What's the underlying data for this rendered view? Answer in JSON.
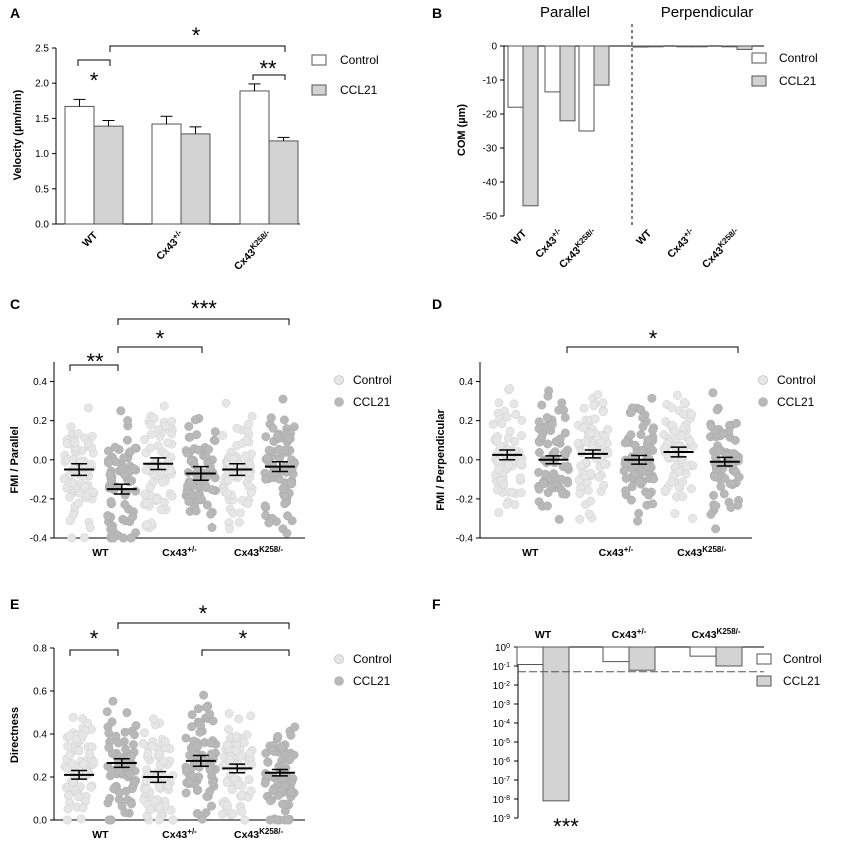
{
  "figure": {
    "colors": {
      "control_fill": "#ffffff",
      "ccl21_fill": "#d3d3d3",
      "control_dot": "#e6e6e6",
      "ccl21_dot": "#b8b8b8",
      "stroke": "#555555"
    }
  },
  "chart_data": [
    {
      "panel": "A",
      "type": "bar",
      "ylabel": "Velocity (µm/min)",
      "ylim": [
        0,
        2.5
      ],
      "yticks": [
        "0.0",
        "0.5",
        "1.0",
        "1.5",
        "2.0",
        "2.5"
      ],
      "categories": [
        "WT",
        "Cx43",
        "Cx43"
      ],
      "category_superscripts": [
        "",
        "+/-",
        "K258/-"
      ],
      "series": [
        {
          "name": "Control",
          "values": [
            1.67,
            1.42,
            1.89
          ],
          "errors": [
            0.1,
            0.11,
            0.1
          ]
        },
        {
          "name": "CCL21",
          "values": [
            1.39,
            1.28,
            1.18
          ],
          "errors": [
            0.08,
            0.1,
            0.05
          ]
        }
      ],
      "legend": [
        "Control",
        "CCL21"
      ],
      "significance": [
        "*",
        "**",
        "*"
      ]
    },
    {
      "panel": "B",
      "type": "bar",
      "ylabel": "COM (µm)",
      "ylim": [
        -50,
        0
      ],
      "yticks": [
        "0",
        "-10",
        "-20",
        "-30",
        "-40",
        "-50"
      ],
      "groups": [
        "Parallel",
        "Perpendicular"
      ],
      "categories": [
        "WT",
        "Cx43",
        "Cx43",
        "WT",
        "Cx43",
        "Cx43"
      ],
      "category_superscripts": [
        "",
        "+/-",
        "K258/-",
        "",
        "+/-",
        "K258/-"
      ],
      "series": [
        {
          "name": "Control",
          "values": [
            -18,
            -13.5,
            -25,
            -0.3,
            -0.2,
            -0.1
          ]
        },
        {
          "name": "CCL21",
          "values": [
            -47,
            -22,
            -11.5,
            -0.1,
            -0.2,
            -1.0
          ]
        }
      ],
      "legend": [
        "Control",
        "CCL21"
      ]
    },
    {
      "panel": "C",
      "type": "scatter",
      "ylabel": "FMI / Parallel",
      "ylim": [
        -0.4,
        0.5
      ],
      "yticks": [
        "0.4",
        "0.2",
        "0.0",
        "-0.2",
        "-0.4"
      ],
      "categories": [
        "WT",
        "Cx43",
        "Cx43"
      ],
      "category_superscripts": [
        "",
        "+/-",
        "K258/-"
      ],
      "series": [
        {
          "name": "Control",
          "means": [
            -0.05,
            -0.02,
            -0.05
          ],
          "sem": [
            0.03,
            0.03,
            0.03
          ]
        },
        {
          "name": "CCL21",
          "means": [
            -0.15,
            -0.07,
            -0.035
          ],
          "sem": [
            0.025,
            0.035,
            0.025
          ]
        }
      ],
      "legend": [
        "Control",
        "CCL21"
      ],
      "significance": [
        "**",
        "*",
        "***"
      ]
    },
    {
      "panel": "D",
      "type": "scatter",
      "ylabel": "FMI / Perpendicular",
      "ylim": [
        -0.4,
        0.5
      ],
      "yticks": [
        "0.4",
        "0.2",
        "0.0",
        "-0.2",
        "-0.4"
      ],
      "categories": [
        "WT",
        "Cx43",
        "Cx43"
      ],
      "category_superscripts": [
        "",
        "+/-",
        "K258/-"
      ],
      "series": [
        {
          "name": "Control",
          "means": [
            0.025,
            0.03,
            0.04
          ],
          "sem": [
            0.025,
            0.02,
            0.025
          ]
        },
        {
          "name": "CCL21",
          "means": [
            0.0,
            0.0,
            -0.01
          ],
          "sem": [
            0.02,
            0.022,
            0.022
          ]
        }
      ],
      "legend": [
        "Control",
        "CCL21"
      ],
      "significance": [
        "*"
      ]
    },
    {
      "panel": "E",
      "type": "scatter",
      "ylabel": "Directness",
      "ylim": [
        0,
        0.8
      ],
      "yticks": [
        "0.8",
        "0.6",
        "0.4",
        "0.2",
        "0.0"
      ],
      "categories": [
        "WT",
        "Cx43",
        "Cx43"
      ],
      "category_superscripts": [
        "",
        "+/-",
        "K258/-"
      ],
      "series": [
        {
          "name": "Control",
          "means": [
            0.21,
            0.2,
            0.24
          ],
          "sem": [
            0.02,
            0.025,
            0.02
          ]
        },
        {
          "name": "CCL21",
          "means": [
            0.265,
            0.275,
            0.22
          ],
          "sem": [
            0.02,
            0.025,
            0.015
          ]
        }
      ],
      "legend": [
        "Control",
        "CCL21"
      ],
      "significance": [
        "*",
        "*",
        "*"
      ]
    },
    {
      "panel": "F",
      "type": "bar",
      "ylabel": "",
      "scale": "log",
      "yticks": [
        {
          "base": "10",
          "exp": "0"
        },
        {
          "base": "10",
          "exp": "-1"
        },
        {
          "base": "10",
          "exp": "-2"
        },
        {
          "base": "10",
          "exp": "-3"
        },
        {
          "base": "10",
          "exp": "-4"
        },
        {
          "base": "10",
          "exp": "-5"
        },
        {
          "base": "10",
          "exp": "-6"
        },
        {
          "base": "10",
          "exp": "-7"
        },
        {
          "base": "10",
          "exp": "-8"
        },
        {
          "base": "10",
          "exp": "-9"
        }
      ],
      "categories": [
        "WT",
        "Cx43",
        "Cx43"
      ],
      "category_superscripts": [
        "",
        "+/-",
        "K258/-"
      ],
      "series": [
        {
          "name": "Control",
          "values": [
            0.12,
            0.17,
            0.33
          ]
        },
        {
          "name": "CCL21",
          "values": [
            8e-09,
            0.06,
            0.1
          ]
        }
      ],
      "threshold": 0.05,
      "legend": [
        "Control",
        "CCL21"
      ],
      "significance": [
        "***"
      ]
    }
  ]
}
